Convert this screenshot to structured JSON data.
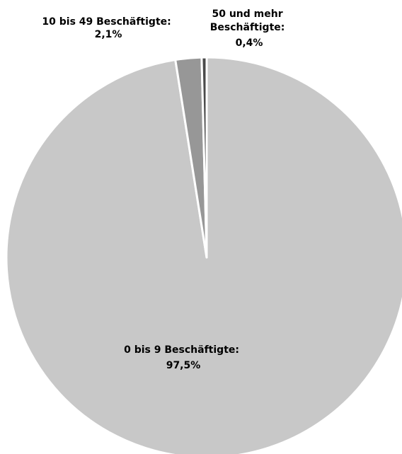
{
  "chart_data": {
    "type": "pie",
    "title": "",
    "start_angle_deg": 0,
    "direction": "clockwise",
    "slices": [
      {
        "category": "0 bis 9 Beschäftigte:",
        "value": 97.5,
        "value_label": "97,5%",
        "color": "#c8c8c8"
      },
      {
        "category": "10 bis 49 Beschäftigte:",
        "value": 2.1,
        "value_label": "2,1%",
        "color": "#979797"
      },
      {
        "category": "50 und mehr Beschäftigte:",
        "category_lines": [
          "50 und mehr",
          "Beschäftigte:"
        ],
        "value": 0.4,
        "value_label": "0,4%",
        "color": "#4a4a4a"
      }
    ],
    "slice_border_color": "#ffffff",
    "legend": "none"
  }
}
